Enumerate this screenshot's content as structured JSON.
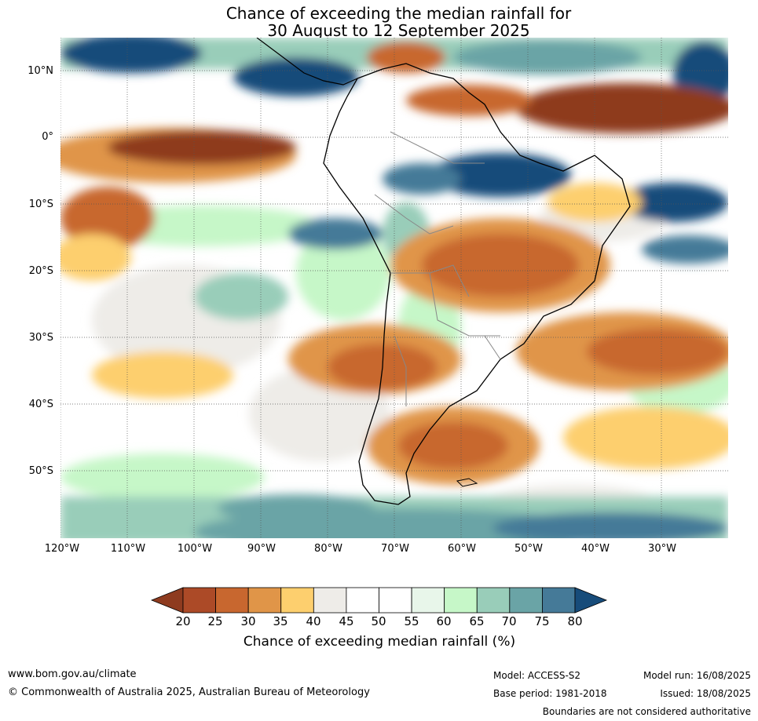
{
  "title": {
    "line1": "Chance of exceeding the median rainfall for",
    "line2": "30 August to 12 September 2025"
  },
  "map": {
    "lat_labels": [
      "10°N",
      "0°",
      "10°S",
      "20°S",
      "30°S",
      "40°S",
      "50°S"
    ],
    "lon_labels": [
      "120°W",
      "110°W",
      "100°W",
      "90°W",
      "80°W",
      "70°W",
      "60°W",
      "50°W",
      "40°W",
      "30°W"
    ],
    "colors": {
      "dry_strong": "#8b3a1e",
      "dry": "#c8672f",
      "dry_mid": "#e39a4a",
      "dry_light": "#fdcf6e",
      "neutral_grey": "#eeece8",
      "neutral": "#ffffff",
      "wet_light": "#c6f7c8",
      "wet_mid": "#7fbfae",
      "wet": "#4a8fa0",
      "wet_strong": "#1a4a78",
      "coast": "#000000",
      "border": "#888888"
    }
  },
  "colorbar": {
    "ticks": [
      "20",
      "25",
      "30",
      "35",
      "40",
      "45",
      "50",
      "55",
      "60",
      "65",
      "70",
      "75",
      "80"
    ],
    "colors": [
      "#8e3b1f",
      "#ac4a27",
      "#c8672f",
      "#e09548",
      "#fdcf6e",
      "#eeece8",
      "#ffffff",
      "#ffffff",
      "#e8f6ea",
      "#c6f7c8",
      "#99cdb9",
      "#6aa4a6",
      "#457a98",
      "#174c7a"
    ],
    "label": "Chance of exceeding median rainfall (%)"
  },
  "footer": {
    "url": "www.bom.gov.au/climate",
    "copyright": "© Commonwealth of Australia 2025, Australian Bureau of Meteorology",
    "model": "Model: ACCESS-S2",
    "base_period": "Base period: 1981-2018",
    "model_run": "Model run: 16/08/2025",
    "issued": "Issued: 18/08/2025",
    "boundaries_note": "Boundaries are not considered authoritative"
  }
}
